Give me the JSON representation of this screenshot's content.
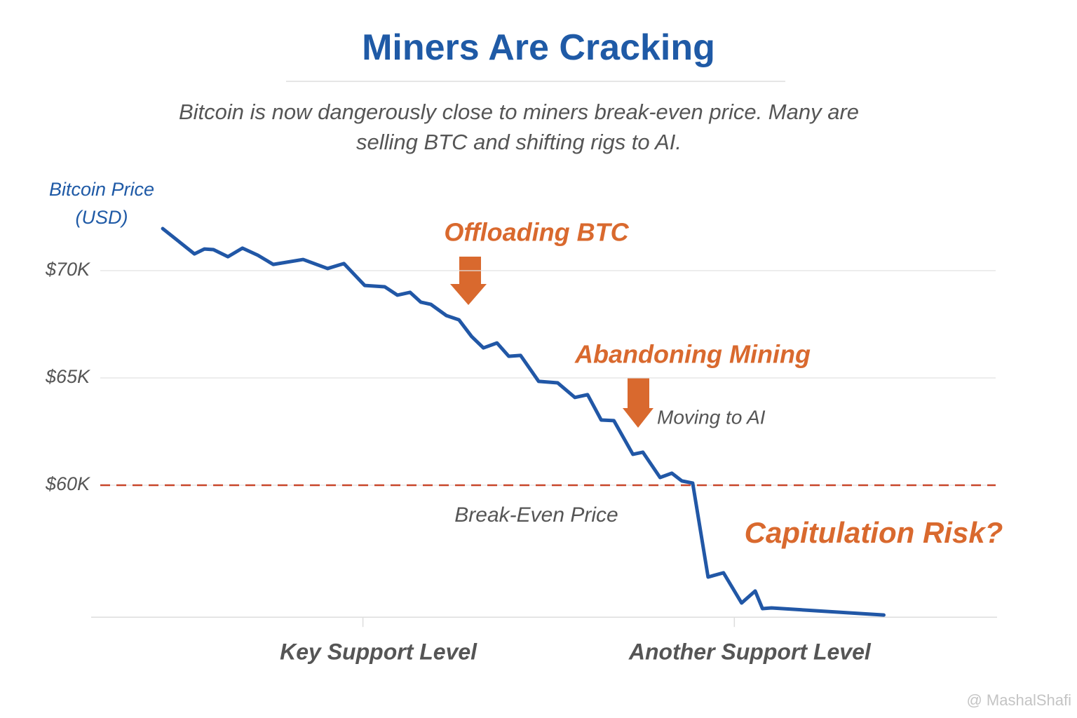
{
  "chart_data": {
    "type": "line",
    "title": "Miners Are Cracking",
    "subtitle": "Bitcoin is now dangerously close to miners break-even price. Many are selling BTC and shifting rigs to AI.",
    "ylabel": "Bitcoin Price (USD)",
    "color": "#2157a6",
    "x": [
      7.9,
      11.4,
      12.5,
      13.5,
      15.1,
      16.7,
      18.4,
      20.1,
      23.4,
      26.1,
      27.9,
      30.2,
      32.4,
      33.8,
      35.2,
      36.4,
      37.5,
      39.2,
      40.6,
      42.0,
      43.3,
      44.8,
      46.1,
      47.4,
      49.4,
      51.5,
      53.4,
      54.8,
      56.3,
      57.7,
      59.8,
      60.9,
      62.8,
      64.1,
      65.2,
      66.4,
      68.1,
      69.8,
      71.8,
      73.3,
      74.1,
      75.1,
      87.5
    ],
    "values": [
      71960,
      70780,
      71010,
      70980,
      70650,
      71050,
      70720,
      70290,
      70520,
      70100,
      70330,
      69310,
      69250,
      68860,
      68990,
      68530,
      68430,
      67910,
      67710,
      66930,
      66400,
      66630,
      66010,
      66050,
      64840,
      64770,
      64090,
      64220,
      63040,
      63010,
      61440,
      61540,
      60360,
      60560,
      60200,
      60100,
      55720,
      55920,
      54510,
      55070,
      54250,
      54280,
      53950
    ],
    "xlim": [
      0,
      100
    ],
    "xticks": [
      {
        "value": 30,
        "label": "Key Support Level"
      },
      {
        "value": 71,
        "label": "Another Support Level"
      }
    ],
    "ylim": [
      53850,
      72500
    ],
    "yticks": [
      {
        "value": 60000,
        "label": "$60K"
      },
      {
        "value": 65000,
        "label": "$65K"
      },
      {
        "value": 70000,
        "label": "$70K"
      }
    ],
    "grid": true,
    "reference_line": {
      "value": 60000,
      "label": "Break-Even Price",
      "color": "#c8462a"
    },
    "annotations": [
      "Offloading BTC",
      "Abandoning Mining",
      "Moving to AI",
      "Capitulation Risk?"
    ],
    "watermark": "@ MashalShafi"
  }
}
